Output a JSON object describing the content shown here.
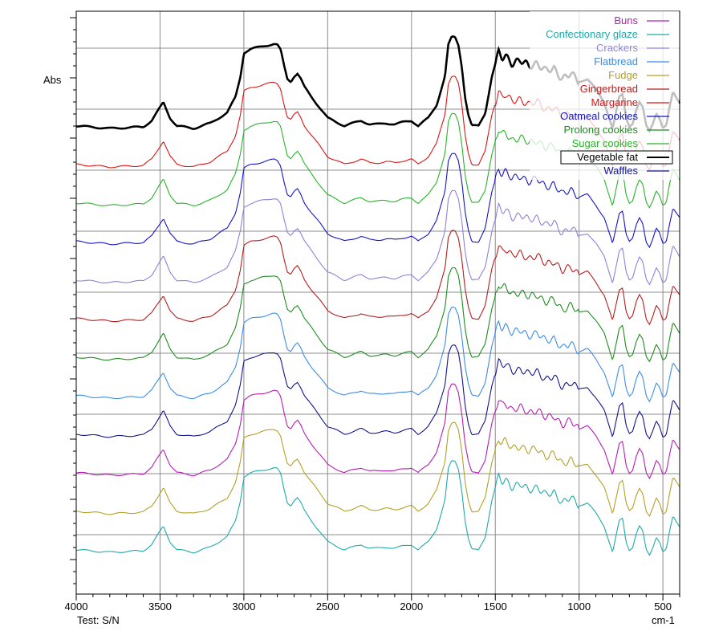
{
  "chart_data": {
    "type": "line",
    "ylabel": "Abs",
    "xunit": "cm-1",
    "footer": "Test: S/N",
    "xlim": [
      4000,
      400
    ],
    "x_ticks": [
      4000,
      3500,
      3000,
      2500,
      2000,
      1500,
      1000,
      500
    ],
    "grid": true,
    "legend_position": "top-right",
    "highlighted_series": "Vegetable fat",
    "legend": [
      {
        "name": "Buns",
        "color": "#b41eb4"
      },
      {
        "name": "Confectionary glaze",
        "color": "#1eaaaa"
      },
      {
        "name": "Crackers",
        "color": "#8c82dc"
      },
      {
        "name": "Flatbread",
        "color": "#3c8ce6"
      },
      {
        "name": "Fudge",
        "color": "#b4a028"
      },
      {
        "name": "Gingerbread",
        "color": "#b41e1e"
      },
      {
        "name": "Margarine",
        "color": "#dc1414"
      },
      {
        "name": "Oatmeal cookies",
        "color": "#1414c8"
      },
      {
        "name": "Prolong cookies",
        "color": "#1e8c1e"
      },
      {
        "name": "Sugar cookies",
        "color": "#28b428"
      },
      {
        "name": "Vegetable fat",
        "color": "#000000"
      },
      {
        "name": "Waffles",
        "color": "#14148c"
      }
    ],
    "stack_order_top_to_bottom": [
      "Vegetable fat",
      "Margarine",
      "Sugar cookies",
      "Oatmeal cookies",
      "Crackers",
      "Gingerbread",
      "Prolong cookies",
      "Flatbread",
      "Waffles",
      "Buns",
      "Fudge",
      "Confectionary glaze"
    ],
    "spectrum_shape": {
      "x": [
        4000,
        3800,
        3600,
        3550,
        3520,
        3480,
        3440,
        3400,
        3300,
        3200,
        3100,
        3050,
        3020,
        3000,
        2960,
        2920,
        2880,
        2850,
        2820,
        2800,
        2780,
        2760,
        2740,
        2720,
        2700,
        2680,
        2660,
        2640,
        2600,
        2500,
        2400,
        2330,
        2300,
        2250,
        2200,
        2150,
        2100,
        2050,
        2000,
        1960,
        1900,
        1850,
        1800,
        1780,
        1760,
        1740,
        1720,
        1700,
        1680,
        1660,
        1640,
        1600,
        1560,
        1520,
        1480,
        1460,
        1440,
        1400,
        1350,
        1300,
        1250,
        1200,
        1150,
        1100,
        1050,
        1000,
        950,
        900,
        850,
        820,
        800,
        780,
        760,
        740,
        720,
        700,
        680,
        660,
        640,
        620,
        600,
        580,
        560,
        540,
        520,
        500,
        480,
        460,
        440,
        420,
        400
      ],
      "values": [
        0.05,
        0.0,
        0.03,
        0.15,
        0.3,
        0.5,
        0.2,
        0.05,
        0.0,
        0.1,
        0.3,
        0.6,
        1.0,
        1.45,
        1.52,
        1.55,
        1.58,
        1.6,
        1.62,
        1.6,
        1.5,
        1.2,
        0.95,
        0.9,
        1.0,
        1.05,
        0.95,
        0.8,
        0.62,
        0.2,
        0.05,
        0.12,
        0.15,
        0.08,
        0.08,
        0.1,
        0.08,
        0.12,
        0.15,
        0.05,
        0.2,
        0.45,
        1.0,
        1.6,
        1.75,
        1.75,
        1.6,
        1.2,
        0.6,
        0.25,
        0.05,
        0.05,
        0.3,
        1.0,
        1.45,
        1.35,
        1.4,
        1.25,
        1.3,
        1.2,
        1.25,
        1.1,
        1.15,
        0.95,
        1.05,
        0.9,
        0.95,
        0.75,
        0.5,
        0.2,
        0.0,
        0.3,
        0.6,
        0.65,
        0.2,
        0.05,
        0.1,
        0.35,
        0.5,
        0.4,
        0.05,
        -0.05,
        0.1,
        0.3,
        0.2,
        0.0,
        0.05,
        0.4,
        0.7,
        0.6,
        0.5
      ]
    }
  }
}
